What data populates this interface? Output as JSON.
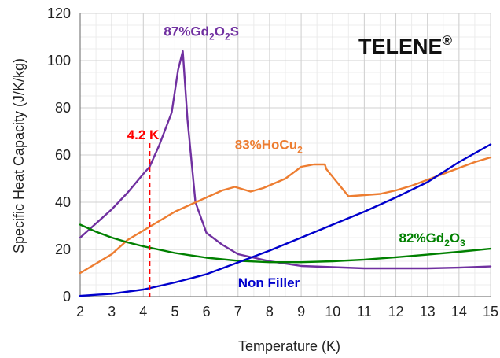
{
  "chart_data": {
    "type": "line",
    "xlabel": "Temperature (K)",
    "ylabel": "Specific Heat Capacity (J/K/kg)",
    "xlim": [
      2,
      15
    ],
    "ylim": [
      0,
      120
    ],
    "xticks": [
      2,
      3,
      4,
      5,
      6,
      7,
      8,
      9,
      10,
      11,
      12,
      13,
      14,
      15
    ],
    "yticks": [
      0,
      20,
      40,
      60,
      80,
      100,
      120
    ],
    "grid": true,
    "brand": "TELENE",
    "brand_mark": "®",
    "marker": {
      "label": "4.2 K",
      "x": 4.2,
      "color": "#ff0000"
    },
    "series": [
      {
        "name": "87%Gd2O2S",
        "label_parts": [
          "87%Gd",
          "2",
          "O",
          "2",
          "S"
        ],
        "color": "#7030a0",
        "points": [
          [
            2.0,
            25
          ],
          [
            2.5,
            31
          ],
          [
            3.0,
            37
          ],
          [
            3.5,
            44
          ],
          [
            4.0,
            52
          ],
          [
            4.2,
            55
          ],
          [
            4.5,
            64
          ],
          [
            4.9,
            78
          ],
          [
            5.1,
            96
          ],
          [
            5.25,
            104
          ],
          [
            5.4,
            75
          ],
          [
            5.65,
            40
          ],
          [
            6.0,
            27
          ],
          [
            6.5,
            22
          ],
          [
            7.0,
            18
          ],
          [
            8.0,
            15
          ],
          [
            9.0,
            13
          ],
          [
            10.0,
            12.5
          ],
          [
            11.0,
            12
          ],
          [
            12.0,
            12
          ],
          [
            13.0,
            12
          ],
          [
            14.0,
            12.3
          ],
          [
            15.0,
            12.8
          ]
        ]
      },
      {
        "name": "83%HoCu2",
        "label_parts": [
          "83%HoCu",
          "2"
        ],
        "color": "#ed7d31",
        "points": [
          [
            2.0,
            10
          ],
          [
            2.5,
            14
          ],
          [
            3.0,
            18
          ],
          [
            3.5,
            24
          ],
          [
            4.0,
            28
          ],
          [
            4.5,
            32
          ],
          [
            5.0,
            36
          ],
          [
            5.5,
            39
          ],
          [
            6.0,
            42
          ],
          [
            6.5,
            45
          ],
          [
            6.9,
            46.5
          ],
          [
            7.4,
            44.5
          ],
          [
            7.8,
            46
          ],
          [
            8.5,
            50
          ],
          [
            9.0,
            55
          ],
          [
            9.4,
            56
          ],
          [
            9.75,
            56
          ],
          [
            9.8,
            54
          ],
          [
            10.5,
            42.5
          ],
          [
            11.0,
            43
          ],
          [
            11.5,
            43.5
          ],
          [
            12.0,
            45
          ],
          [
            12.5,
            47
          ],
          [
            13.0,
            49.5
          ],
          [
            13.5,
            52
          ],
          [
            14.0,
            54.5
          ],
          [
            14.5,
            57
          ],
          [
            15.0,
            59
          ]
        ]
      },
      {
        "name": "82%Gd2O3",
        "label_parts": [
          "82%Gd",
          "2",
          "O",
          "3"
        ],
        "color": "#008000",
        "points": [
          [
            2.0,
            30.5
          ],
          [
            2.5,
            27.5
          ],
          [
            3.0,
            25
          ],
          [
            3.5,
            23
          ],
          [
            4.0,
            21.3
          ],
          [
            5.0,
            18.5
          ],
          [
            6.0,
            16.5
          ],
          [
            7.0,
            15.2
          ],
          [
            8.0,
            14.6
          ],
          [
            9.0,
            14.6
          ],
          [
            10.0,
            15
          ],
          [
            11.0,
            15.7
          ],
          [
            12.0,
            16.7
          ],
          [
            13.0,
            17.8
          ],
          [
            14.0,
            19
          ],
          [
            15.0,
            20.3
          ]
        ]
      },
      {
        "name": "Non Filler",
        "label_parts": [
          "Non Filler"
        ],
        "color": "#0000cc",
        "points": [
          [
            2.0,
            0.3
          ],
          [
            3.0,
            1.2
          ],
          [
            4.0,
            3
          ],
          [
            5.0,
            6
          ],
          [
            6.0,
            9.5
          ],
          [
            7.0,
            14.5
          ],
          [
            8.0,
            19.5
          ],
          [
            9.0,
            25
          ],
          [
            10.0,
            30.5
          ],
          [
            11.0,
            36
          ],
          [
            12.0,
            42
          ],
          [
            13.0,
            48.5
          ],
          [
            14.0,
            57
          ],
          [
            15.0,
            64.5
          ]
        ]
      }
    ]
  }
}
